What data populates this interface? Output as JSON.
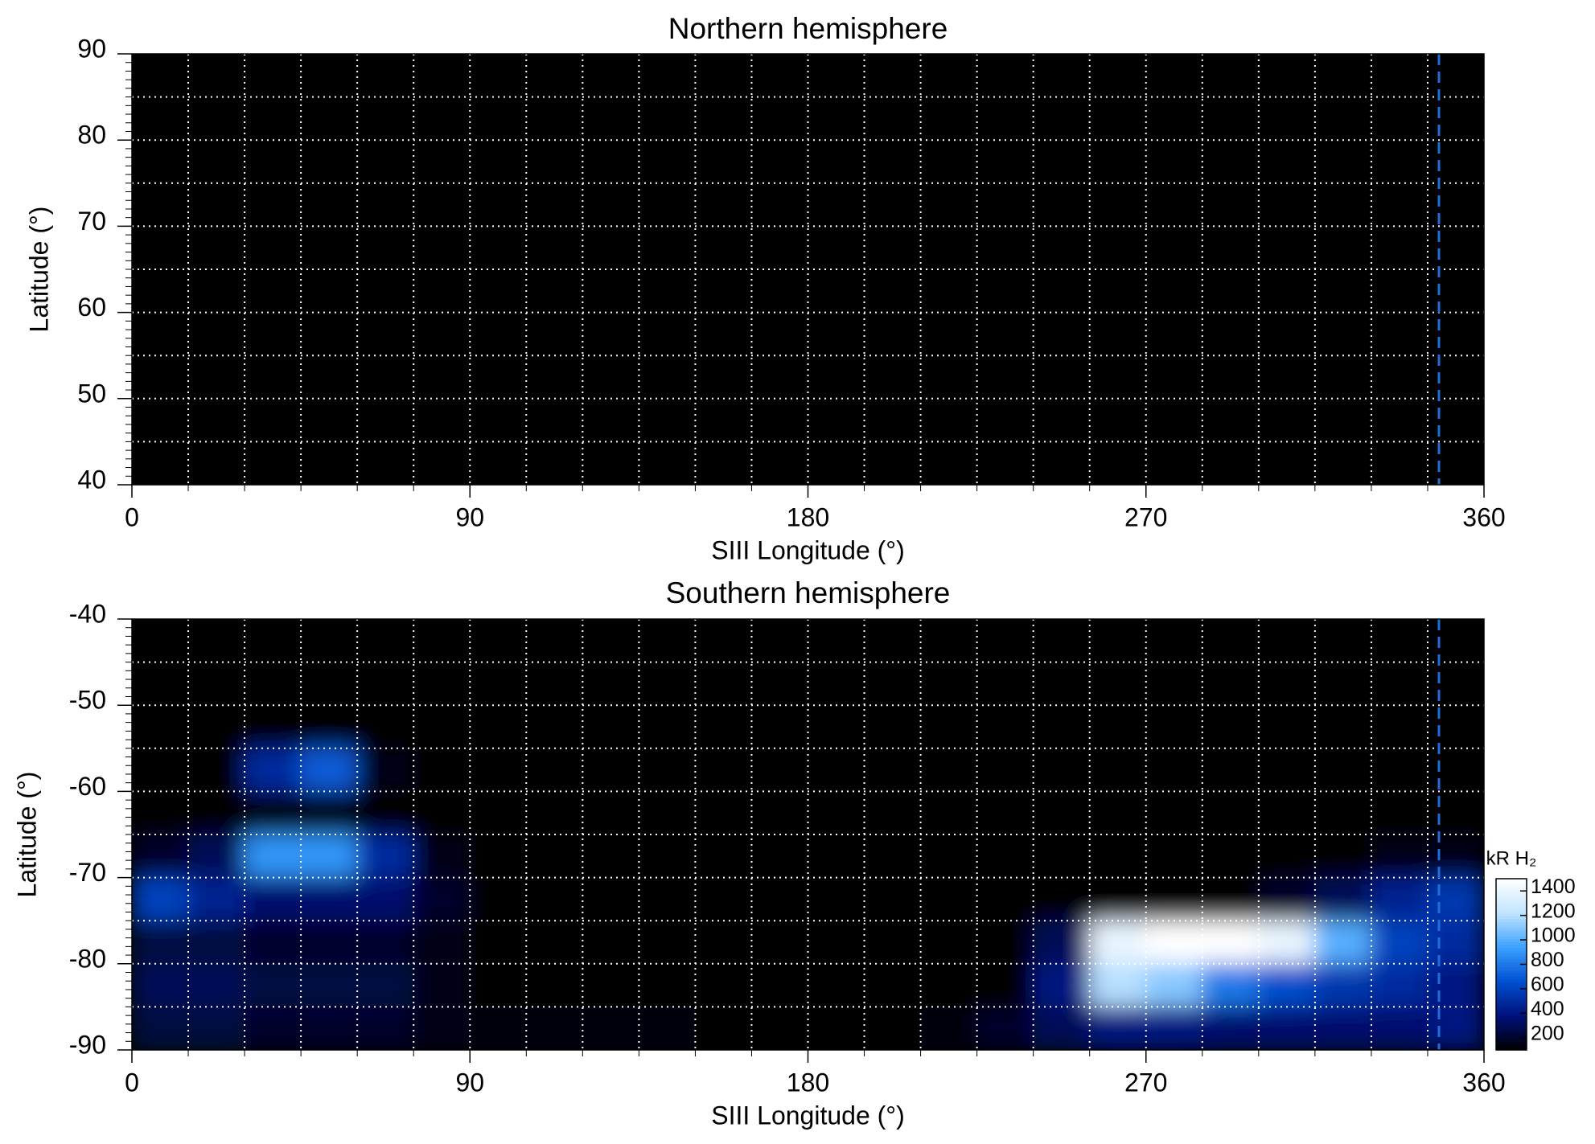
{
  "chart_data": [
    {
      "type": "heatmap",
      "title": "Northern hemisphere",
      "x_label": "SIII Longitude (°)",
      "y_label": "Latitude (°)",
      "xlim": [
        0,
        360
      ],
      "ylim": [
        40,
        90
      ],
      "xticks": [
        0,
        90,
        180,
        270,
        360
      ],
      "yticks": [
        40,
        50,
        60,
        70,
        80,
        90
      ],
      "grid": true,
      "xgrid_step": 15,
      "ygrid_step": 5,
      "reference_line": {
        "x": 348,
        "color": "#1e6fd9"
      }
    },
    {
      "type": "heatmap",
      "title": "Southern hemisphere",
      "x_label": "SIII Longitude (°)",
      "y_label": "Latitude (°)",
      "xlim": [
        0,
        360
      ],
      "ylim": [
        -90,
        -40
      ],
      "xticks": [
        0,
        90,
        180,
        270,
        360
      ],
      "yticks": [
        -90,
        -80,
        -70,
        -60,
        -50,
        -40
      ],
      "grid": true,
      "xgrid_step": 15,
      "ygrid_step": 5,
      "reference_line": {
        "x": 348,
        "color": "#1e6fd9"
      },
      "z": [
        [
          0,
          0,
          0,
          0,
          0,
          0,
          0,
          0,
          0,
          0,
          0,
          0,
          0,
          0,
          0,
          0,
          0,
          0,
          0,
          0,
          0,
          0,
          0,
          0
        ],
        [
          0,
          0,
          0,
          0,
          0,
          0,
          0,
          0,
          0,
          0,
          0,
          0,
          0,
          0,
          0,
          0,
          0,
          0,
          0,
          0,
          0,
          0,
          0,
          0
        ],
        [
          0,
          0,
          0,
          0,
          0,
          0,
          0,
          0,
          0,
          0,
          0,
          0,
          0,
          0,
          0,
          0,
          0,
          0,
          0,
          0,
          0,
          0,
          0,
          0
        ],
        [
          0,
          0,
          500,
          700,
          150,
          0,
          0,
          0,
          0,
          0,
          0,
          0,
          0,
          0,
          0,
          0,
          0,
          0,
          0,
          0,
          0,
          0,
          0,
          0
        ],
        [
          0,
          0,
          0,
          100,
          100,
          0,
          0,
          0,
          0,
          0,
          0,
          0,
          0,
          0,
          0,
          0,
          0,
          0,
          0,
          0,
          0,
          0,
          0,
          0
        ],
        [
          200,
          300,
          900,
          900,
          500,
          150,
          0,
          0,
          0,
          0,
          0,
          0,
          0,
          0,
          0,
          0,
          0,
          0,
          0,
          0,
          0,
          0,
          150,
          150
        ],
        [
          600,
          450,
          350,
          350,
          350,
          200,
          0,
          0,
          0,
          0,
          0,
          0,
          0,
          0,
          0,
          0,
          0,
          0,
          0,
          100,
          200,
          300,
          450,
          550
        ],
        [
          250,
          250,
          200,
          200,
          200,
          150,
          0,
          0,
          0,
          0,
          0,
          0,
          0,
          0,
          0,
          0,
          300,
          1400,
          1500,
          1500,
          1400,
          1000,
          600,
          500
        ],
        [
          300,
          300,
          250,
          250,
          250,
          150,
          0,
          0,
          0,
          0,
          0,
          0,
          0,
          0,
          0,
          100,
          400,
          1200,
          1100,
          800,
          650,
          550,
          500,
          400
        ],
        [
          250,
          250,
          200,
          200,
          200,
          150,
          120,
          120,
          120,
          120,
          60,
          0,
          0,
          80,
          120,
          200,
          300,
          400,
          400,
          350,
          350,
          350,
          350,
          400
        ]
      ],
      "zlim": [
        100,
        1500
      ],
      "zticks": [
        200,
        400,
        600,
        800,
        1000,
        1200,
        1400
      ],
      "colorbar_label": "kR H₂",
      "colors": [
        "#000000",
        "#00107a",
        "#0050d0",
        "#3aa0ff",
        "#c0e4ff",
        "#ffffff"
      ]
    }
  ]
}
